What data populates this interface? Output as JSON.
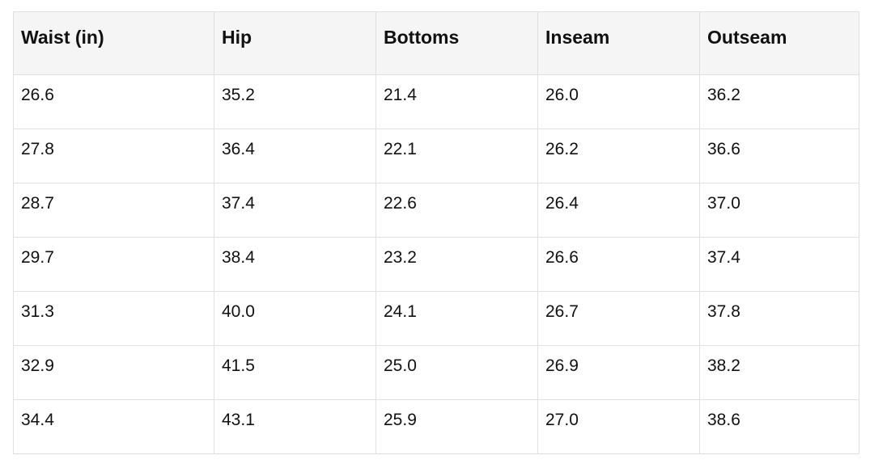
{
  "colors": {
    "page_background": "#ffffff",
    "header_background": "#f5f5f5",
    "grid_border": "#e0e0e0",
    "text": "#111111"
  },
  "chart_data": {
    "type": "table",
    "title": "",
    "columns": [
      "Waist (in)",
      "Hip",
      "Bottoms",
      "Inseam",
      "Outseam"
    ],
    "rows": [
      [
        "26.6",
        "35.2",
        "21.4",
        "26.0",
        "36.2"
      ],
      [
        "27.8",
        "36.4",
        "22.1",
        "26.2",
        "36.6"
      ],
      [
        "28.7",
        "37.4",
        "22.6",
        "26.4",
        "37.0"
      ],
      [
        "29.7",
        "38.4",
        "23.2",
        "26.6",
        "37.4"
      ],
      [
        "31.3",
        "40.0",
        "24.1",
        "26.7",
        "37.8"
      ],
      [
        "32.9",
        "41.5",
        "25.0",
        "26.9",
        "38.2"
      ],
      [
        "34.4",
        "43.1",
        "25.9",
        "27.0",
        "38.6"
      ]
    ],
    "layout": {
      "header_row": true,
      "grid": true,
      "row_count": 7,
      "column_count": 5
    }
  }
}
